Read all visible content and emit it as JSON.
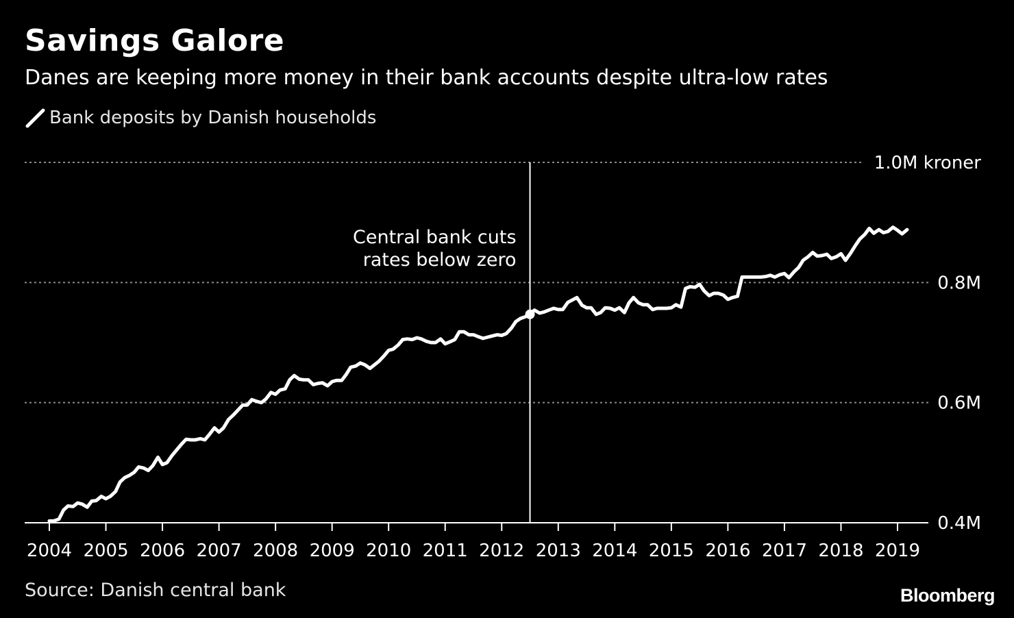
{
  "title": "Savings Galore",
  "subtitle": "Danes are keeping more money in their bank accounts despite ultra-low rates",
  "source": "Source: Danish central bank",
  "brand": "Bloomberg",
  "colors": {
    "background": "#000000",
    "line": "#ffffff",
    "grid": "#8c8c8c",
    "text": "#ffffff"
  },
  "chart_data": {
    "type": "line",
    "legend": "top-left",
    "grid": true,
    "x_unit": "year",
    "xlim": [
      2003.85,
      2019.5
    ],
    "ylim": [
      0.4,
      1.0
    ],
    "y_ticks": [
      {
        "value": 0.4,
        "label": "0.4M"
      },
      {
        "value": 0.6,
        "label": "0.6M"
      },
      {
        "value": 0.8,
        "label": "0.8M"
      },
      {
        "value": 1.0,
        "label": "1.0M kroner"
      }
    ],
    "x_ticks": [
      {
        "value": 2004,
        "label": "2004"
      },
      {
        "value": 2005,
        "label": "2005"
      },
      {
        "value": 2006,
        "label": "2006"
      },
      {
        "value": 2007,
        "label": "2007"
      },
      {
        "value": 2008,
        "label": "2008"
      },
      {
        "value": 2009,
        "label": "2009"
      },
      {
        "value": 2010,
        "label": "2010"
      },
      {
        "value": 2011,
        "label": "2011"
      },
      {
        "value": 2012,
        "label": "2012"
      },
      {
        "value": 2013,
        "label": "2013"
      },
      {
        "value": 2014,
        "label": "2014"
      },
      {
        "value": 2015,
        "label": "2015"
      },
      {
        "value": 2016,
        "label": "2016"
      },
      {
        "value": 2017,
        "label": "2017"
      },
      {
        "value": 2018,
        "label": "2018"
      },
      {
        "value": 2019,
        "label": "2019"
      }
    ],
    "series": [
      {
        "name": "Bank deposits by Danish households",
        "unit": "M kroner",
        "points": [
          [
            2004.0,
            0.403
          ],
          [
            2004.08,
            0.403
          ],
          [
            2004.17,
            0.406
          ],
          [
            2004.25,
            0.421
          ],
          [
            2004.33,
            0.428
          ],
          [
            2004.42,
            0.427
          ],
          [
            2004.5,
            0.433
          ],
          [
            2004.58,
            0.431
          ],
          [
            2004.67,
            0.426
          ],
          [
            2004.75,
            0.436
          ],
          [
            2004.83,
            0.437
          ],
          [
            2004.92,
            0.444
          ],
          [
            2005.0,
            0.44
          ],
          [
            2005.08,
            0.444
          ],
          [
            2005.17,
            0.452
          ],
          [
            2005.25,
            0.468
          ],
          [
            2005.33,
            0.475
          ],
          [
            2005.42,
            0.479
          ],
          [
            2005.5,
            0.484
          ],
          [
            2005.58,
            0.493
          ],
          [
            2005.67,
            0.491
          ],
          [
            2005.75,
            0.487
          ],
          [
            2005.83,
            0.495
          ],
          [
            2005.92,
            0.509
          ],
          [
            2006.0,
            0.497
          ],
          [
            2006.08,
            0.5
          ],
          [
            2006.17,
            0.512
          ],
          [
            2006.25,
            0.521
          ],
          [
            2006.33,
            0.53
          ],
          [
            2006.42,
            0.539
          ],
          [
            2006.5,
            0.538
          ],
          [
            2006.58,
            0.538
          ],
          [
            2006.67,
            0.54
          ],
          [
            2006.75,
            0.538
          ],
          [
            2006.83,
            0.547
          ],
          [
            2006.92,
            0.558
          ],
          [
            2007.0,
            0.551
          ],
          [
            2007.08,
            0.558
          ],
          [
            2007.17,
            0.572
          ],
          [
            2007.25,
            0.579
          ],
          [
            2007.33,
            0.587
          ],
          [
            2007.42,
            0.596
          ],
          [
            2007.5,
            0.596
          ],
          [
            2007.58,
            0.605
          ],
          [
            2007.67,
            0.602
          ],
          [
            2007.75,
            0.6
          ],
          [
            2007.83,
            0.606
          ],
          [
            2007.92,
            0.617
          ],
          [
            2008.0,
            0.614
          ],
          [
            2008.08,
            0.621
          ],
          [
            2008.17,
            0.623
          ],
          [
            2008.25,
            0.638
          ],
          [
            2008.33,
            0.645
          ],
          [
            2008.42,
            0.639
          ],
          [
            2008.5,
            0.638
          ],
          [
            2008.58,
            0.638
          ],
          [
            2008.67,
            0.63
          ],
          [
            2008.75,
            0.632
          ],
          [
            2008.83,
            0.633
          ],
          [
            2008.92,
            0.628
          ],
          [
            2009.0,
            0.635
          ],
          [
            2009.08,
            0.637
          ],
          [
            2009.17,
            0.637
          ],
          [
            2009.25,
            0.647
          ],
          [
            2009.33,
            0.659
          ],
          [
            2009.42,
            0.661
          ],
          [
            2009.5,
            0.666
          ],
          [
            2009.58,
            0.663
          ],
          [
            2009.67,
            0.657
          ],
          [
            2009.75,
            0.663
          ],
          [
            2009.83,
            0.669
          ],
          [
            2009.92,
            0.678
          ],
          [
            2010.0,
            0.687
          ],
          [
            2010.08,
            0.689
          ],
          [
            2010.17,
            0.696
          ],
          [
            2010.25,
            0.705
          ],
          [
            2010.33,
            0.706
          ],
          [
            2010.42,
            0.705
          ],
          [
            2010.5,
            0.708
          ],
          [
            2010.58,
            0.706
          ],
          [
            2010.67,
            0.702
          ],
          [
            2010.75,
            0.7
          ],
          [
            2010.83,
            0.7
          ],
          [
            2010.92,
            0.706
          ],
          [
            2011.0,
            0.698
          ],
          [
            2011.08,
            0.701
          ],
          [
            2011.17,
            0.705
          ],
          [
            2011.25,
            0.718
          ],
          [
            2011.33,
            0.718
          ],
          [
            2011.42,
            0.713
          ],
          [
            2011.5,
            0.713
          ],
          [
            2011.58,
            0.71
          ],
          [
            2011.67,
            0.707
          ],
          [
            2011.75,
            0.709
          ],
          [
            2011.83,
            0.711
          ],
          [
            2011.92,
            0.713
          ],
          [
            2012.0,
            0.712
          ],
          [
            2012.08,
            0.715
          ],
          [
            2012.17,
            0.724
          ],
          [
            2012.25,
            0.735
          ],
          [
            2012.33,
            0.74
          ],
          [
            2012.42,
            0.743
          ],
          [
            2012.5,
            0.748
          ],
          [
            2012.58,
            0.754
          ],
          [
            2012.67,
            0.749
          ],
          [
            2012.75,
            0.751
          ],
          [
            2012.83,
            0.754
          ],
          [
            2012.92,
            0.757
          ],
          [
            2013.0,
            0.755
          ],
          [
            2013.08,
            0.755
          ],
          [
            2013.17,
            0.767
          ],
          [
            2013.25,
            0.771
          ],
          [
            2013.33,
            0.775
          ],
          [
            2013.42,
            0.762
          ],
          [
            2013.5,
            0.758
          ],
          [
            2013.58,
            0.758
          ],
          [
            2013.67,
            0.747
          ],
          [
            2013.75,
            0.75
          ],
          [
            2013.83,
            0.758
          ],
          [
            2013.92,
            0.757
          ],
          [
            2014.0,
            0.754
          ],
          [
            2014.08,
            0.758
          ],
          [
            2014.17,
            0.75
          ],
          [
            2014.25,
            0.766
          ],
          [
            2014.33,
            0.775
          ],
          [
            2014.42,
            0.766
          ],
          [
            2014.5,
            0.763
          ],
          [
            2014.58,
            0.763
          ],
          [
            2014.67,
            0.755
          ],
          [
            2014.75,
            0.757
          ],
          [
            2014.83,
            0.757
          ],
          [
            2014.92,
            0.757
          ],
          [
            2015.0,
            0.758
          ],
          [
            2015.08,
            0.763
          ],
          [
            2015.17,
            0.759
          ],
          [
            2015.25,
            0.79
          ],
          [
            2015.33,
            0.793
          ],
          [
            2015.42,
            0.792
          ],
          [
            2015.5,
            0.797
          ],
          [
            2015.58,
            0.786
          ],
          [
            2015.67,
            0.778
          ],
          [
            2015.75,
            0.782
          ],
          [
            2015.83,
            0.782
          ],
          [
            2015.92,
            0.779
          ],
          [
            2016.0,
            0.772
          ],
          [
            2016.08,
            0.775
          ],
          [
            2016.17,
            0.777
          ],
          [
            2016.25,
            0.809
          ],
          [
            2016.33,
            0.809
          ],
          [
            2016.42,
            0.809
          ],
          [
            2016.5,
            0.809
          ],
          [
            2016.58,
            0.809
          ],
          [
            2016.67,
            0.81
          ],
          [
            2016.75,
            0.812
          ],
          [
            2016.83,
            0.809
          ],
          [
            2016.92,
            0.813
          ],
          [
            2017.0,
            0.815
          ],
          [
            2017.08,
            0.808
          ],
          [
            2017.17,
            0.818
          ],
          [
            2017.25,
            0.825
          ],
          [
            2017.33,
            0.837
          ],
          [
            2017.42,
            0.843
          ],
          [
            2017.5,
            0.85
          ],
          [
            2017.58,
            0.844
          ],
          [
            2017.67,
            0.845
          ],
          [
            2017.75,
            0.847
          ],
          [
            2017.83,
            0.84
          ],
          [
            2017.92,
            0.843
          ],
          [
            2018.0,
            0.848
          ],
          [
            2018.08,
            0.837
          ],
          [
            2018.17,
            0.849
          ],
          [
            2018.25,
            0.861
          ],
          [
            2018.33,
            0.872
          ],
          [
            2018.42,
            0.88
          ],
          [
            2018.5,
            0.89
          ],
          [
            2018.58,
            0.882
          ],
          [
            2018.67,
            0.888
          ],
          [
            2018.75,
            0.883
          ],
          [
            2018.83,
            0.885
          ],
          [
            2018.92,
            0.892
          ],
          [
            2019.0,
            0.887
          ],
          [
            2019.08,
            0.881
          ],
          [
            2019.17,
            0.888
          ]
        ]
      }
    ],
    "annotations": [
      {
        "x": 2012.5,
        "y": 0.747,
        "lines": [
          "Central bank cuts",
          "rates below zero"
        ]
      }
    ]
  }
}
